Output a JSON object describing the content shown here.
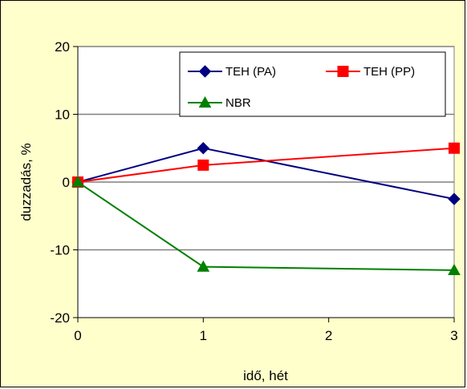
{
  "chart_data": {
    "type": "line",
    "title": "",
    "xlabel": "idő, hét",
    "ylabel": "duzzadás, %",
    "xlim": [
      0,
      3
    ],
    "ylim": [
      -20,
      20
    ],
    "x_ticks": [
      "0",
      "1",
      "2",
      "3"
    ],
    "y_ticks": [
      "20",
      "10",
      "0",
      "-10",
      "-20"
    ],
    "grid": "horizontal",
    "legend_position": "top-right",
    "series": [
      {
        "name": "TEH (PA)",
        "color": "#000080",
        "marker": "diamond",
        "x": [
          0,
          1,
          3
        ],
        "y": [
          0,
          5,
          -2.5
        ]
      },
      {
        "name": "TEH (PP)",
        "color": "#ff0000",
        "marker": "square",
        "x": [
          0,
          1,
          3
        ],
        "y": [
          0,
          2.5,
          5
        ]
      },
      {
        "name": "NBR",
        "color": "#008000",
        "marker": "triangle",
        "x": [
          0,
          1,
          3
        ],
        "y": [
          0,
          -12.5,
          -13
        ]
      }
    ]
  },
  "colors": {
    "frame_background": "#ffffcc",
    "plot_background": "#ffffff",
    "gridline": "#808080"
  }
}
